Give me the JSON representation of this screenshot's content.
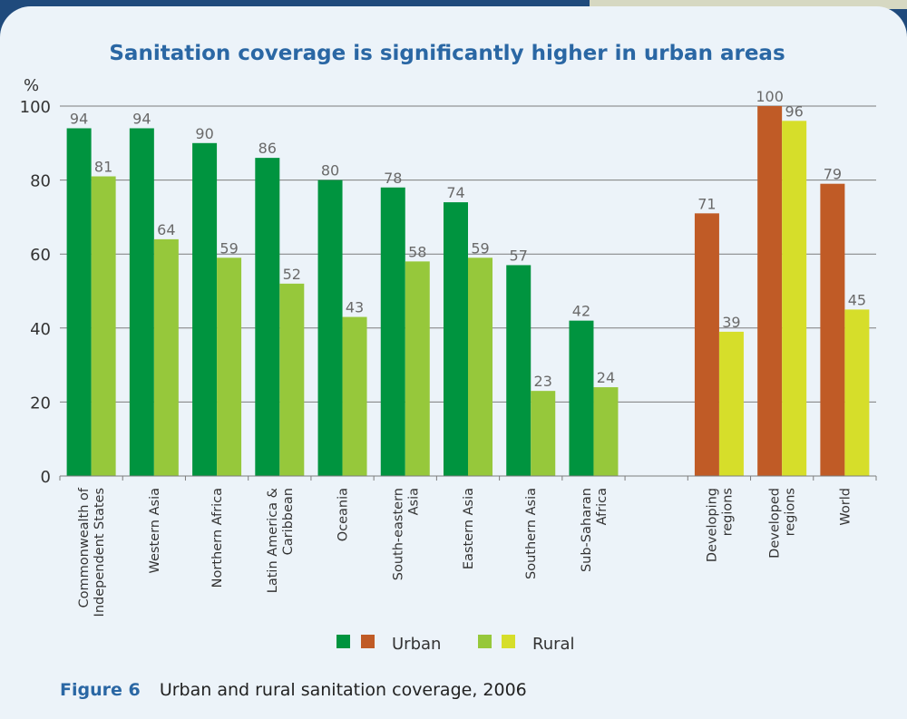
{
  "caption": {
    "label": "Figure 6",
    "text": "Urban and rural sanitation coverage, 2006"
  },
  "chart_data": {
    "type": "bar",
    "title": "Sanitation coverage is significantly higher in urban areas",
    "ylabel": "%",
    "ylim": [
      0,
      100
    ],
    "yticks": [
      "0",
      "20",
      "40",
      "60",
      "80",
      "100"
    ],
    "grid": true,
    "legend_position": "bottom-center",
    "categories": [
      [
        "Commonwealth of",
        "Independent States"
      ],
      [
        "Western Asia"
      ],
      [
        "Northern Africa"
      ],
      [
        "Latin America &",
        "Caribbean"
      ],
      [
        "Oceania"
      ],
      [
        "South-eastern",
        "Asia"
      ],
      [
        "Eastern Asia"
      ],
      [
        "Southern Asia"
      ],
      [
        "Sub-Saharan",
        "Africa"
      ],
      [],
      [
        "Developing",
        "regions"
      ],
      [
        "Developed",
        "regions"
      ],
      [
        "World"
      ]
    ],
    "series": [
      {
        "name": "Urban",
        "values": [
          94,
          94,
          90,
          86,
          80,
          78,
          74,
          57,
          42,
          null,
          71,
          100,
          79
        ]
      },
      {
        "name": "Rural",
        "values": [
          81,
          64,
          59,
          52,
          43,
          58,
          59,
          23,
          24,
          null,
          39,
          96,
          45
        ]
      }
    ],
    "colors": {
      "urban_regional": "#00943f",
      "rural_regional": "#96c83b",
      "urban_aggregate": "#c05b26",
      "rural_aggregate": "#d6de2a"
    },
    "aggregate_from_index": 10
  }
}
